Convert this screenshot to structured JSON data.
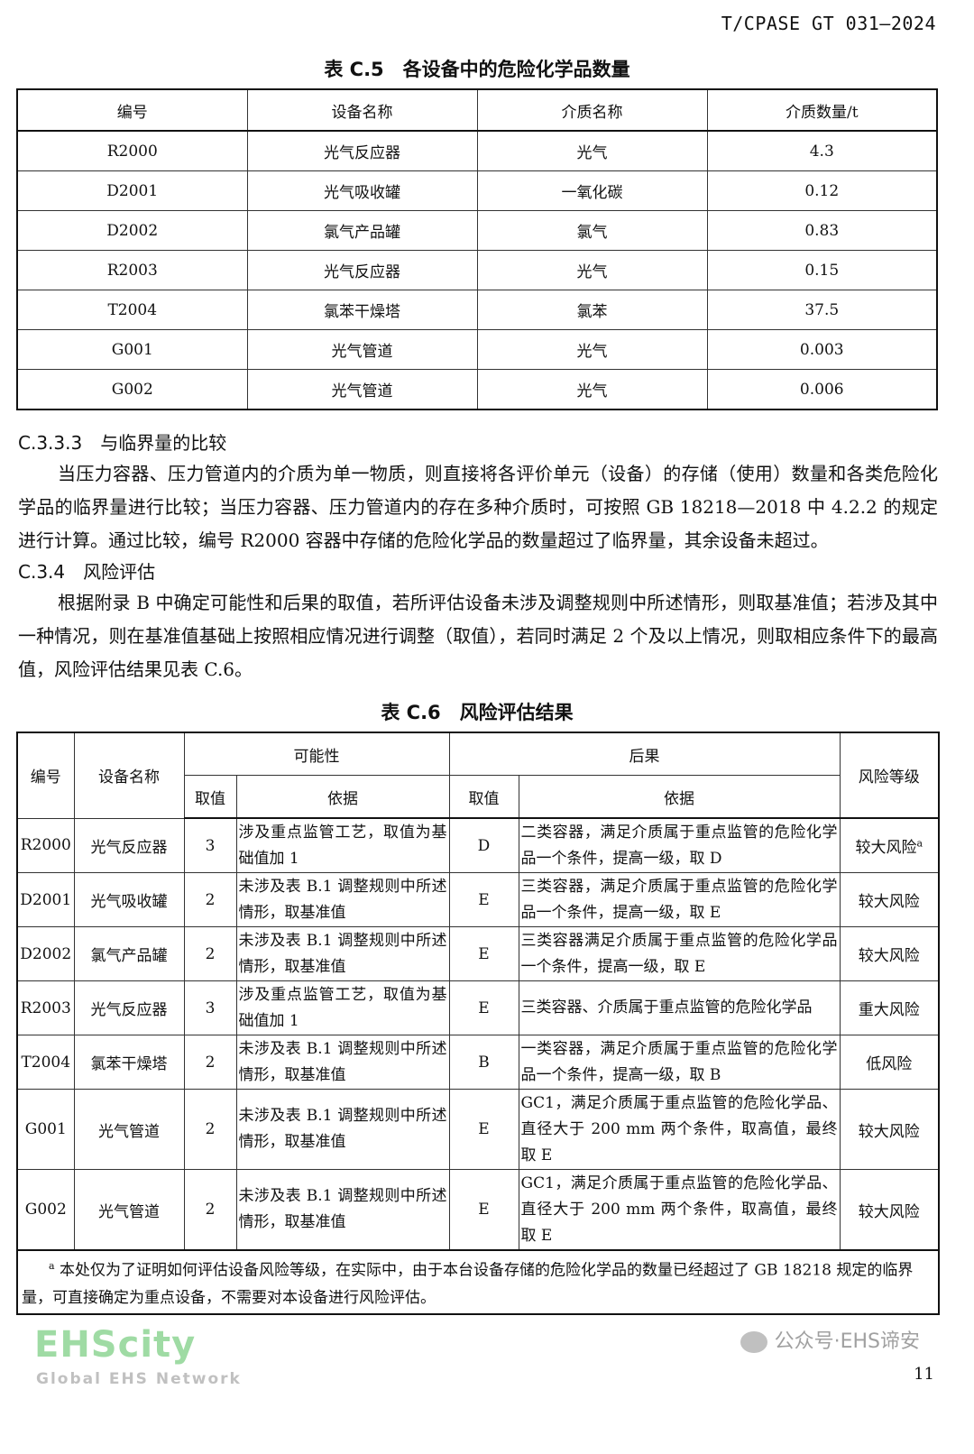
{
  "header": {
    "standard_no": "T/CPASE GT 031—2024"
  },
  "table_c5": {
    "caption": "表 C.5　各设备中的危险化学品数量",
    "columns": [
      "编号",
      "设备名称",
      "介质名称",
      "介质数量/t"
    ],
    "rows": [
      [
        "R2000",
        "光气反应器",
        "光气",
        "4.3"
      ],
      [
        "D2001",
        "光气吸收罐",
        "一氧化碳",
        "0.12"
      ],
      [
        "D2002",
        "氯气产品罐",
        "氯气",
        "0.83"
      ],
      [
        "R2003",
        "光气反应器",
        "光气",
        "0.15"
      ],
      [
        "T2004",
        "氯苯干燥塔",
        "氯苯",
        "37.5"
      ],
      [
        "G001",
        "光气管道",
        "光气",
        "0.003"
      ],
      [
        "G002",
        "光气管道",
        "光气",
        "0.006"
      ]
    ]
  },
  "section_c333": {
    "heading": "C.3.3.3　与临界量的比较",
    "body": "当压力容器、压力管道内的介质为单一物质，则直接将各评价单元（设备）的存储（使用）数量和各类危险化学品的临界量进行比较；当压力容器、压力管道内的存在多种介质时，可按照 GB 18218—2018 中 4.2.2 的规定进行计算。通过比较，编号 R2000 容器中存储的危险化学品的数量超过了临界量，其余设备未超过。"
  },
  "section_c34": {
    "heading": "C.3.4　风险评估",
    "body": "根据附录 B 中确定可能性和后果的取值，若所评估设备未涉及调整规则中所述情形，则取基准值；若涉及其中一种情况，则在基准值基础上按照相应情况进行调整（取值），若同时满足 2 个及以上情况，则取相应条件下的最高值，风险评估结果见表 C.6。"
  },
  "watermark": {
    "brand": "EHScity",
    "tagline": "Global EHS Network",
    "color": "#50be5a"
  },
  "table_c6": {
    "caption": "表 C.6　风险评估结果",
    "headers": {
      "id": "编号",
      "name": "设备名称",
      "likelihood": "可能性",
      "consequence": "后果",
      "value": "取值",
      "basis": "依据",
      "level": "风险等级"
    },
    "rows": [
      {
        "id": "R2000",
        "name": "光气反应器",
        "lv": "3",
        "lb": "涉及重点监管工艺，取值为基础值加 1",
        "cv": "D",
        "cb": "二类容器，满足介质属于重点监管的危险化学品一个条件，提高一级，取 D",
        "level": "较大风险",
        "note": "a"
      },
      {
        "id": "D2001",
        "name": "光气吸收罐",
        "lv": "2",
        "lb": "未涉及表 B.1 调整规则中所述情形，取基准值",
        "cv": "E",
        "cb": "三类容器，满足介质属于重点监管的危险化学品一个条件，提高一级，取 E",
        "level": "较大风险"
      },
      {
        "id": "D2002",
        "name": "氯气产品罐",
        "lv": "2",
        "lb": "未涉及表 B.1 调整规则中所述情形，取基准值",
        "cv": "E",
        "cb": "三类容器满足介质属于重点监管的危险化学品一个条件，提高一级，取 E",
        "level": "较大风险"
      },
      {
        "id": "R2003",
        "name": "光气反应器",
        "lv": "3",
        "lb": "涉及重点监管工艺，取值为基础值加 1",
        "cv": "E",
        "cb": "三类容器、介质属于重点监管的危险化学品",
        "level": "重大风险"
      },
      {
        "id": "T2004",
        "name": "氯苯干燥塔",
        "lv": "2",
        "lb": "未涉及表 B.1 调整规则中所述情形，取基准值",
        "cv": "B",
        "cb": "一类容器，满足介质属于重点监管的危险化学品一个条件，提高一级，取 B",
        "level": "低风险"
      },
      {
        "id": "G001",
        "name": "光气管道",
        "lv": "2",
        "lb": "未涉及表 B.1 调整规则中所述情形，取基准值",
        "cv": "E",
        "cb": "GC1，满足介质属于重点监管的危险化学品、直径大于 200 mm 两个条件，取高值，最终取 E",
        "level": "较大风险"
      },
      {
        "id": "G002",
        "name": "光气管道",
        "lv": "2",
        "lb": "未涉及表 B.1 调整规则中所述情形，取基准值",
        "cv": "E",
        "cb": "GC1，满足介质属于重点监管的危险化学品、直径大于 200 mm 两个条件，取高值，最终取 E",
        "level": "较大风险"
      }
    ],
    "footnote_mark": "a",
    "footnote": "本处仅为了证明如何评估设备风险等级，在实际中，由于本台设备存储的危险化学品的数量已经超过了 GB 18218 规定的临界量，可直接确定为重点设备，不需要对本设备进行风险评估。"
  },
  "footer": {
    "account_watermark": "公众号·EHS谛安",
    "page_number": "11"
  }
}
